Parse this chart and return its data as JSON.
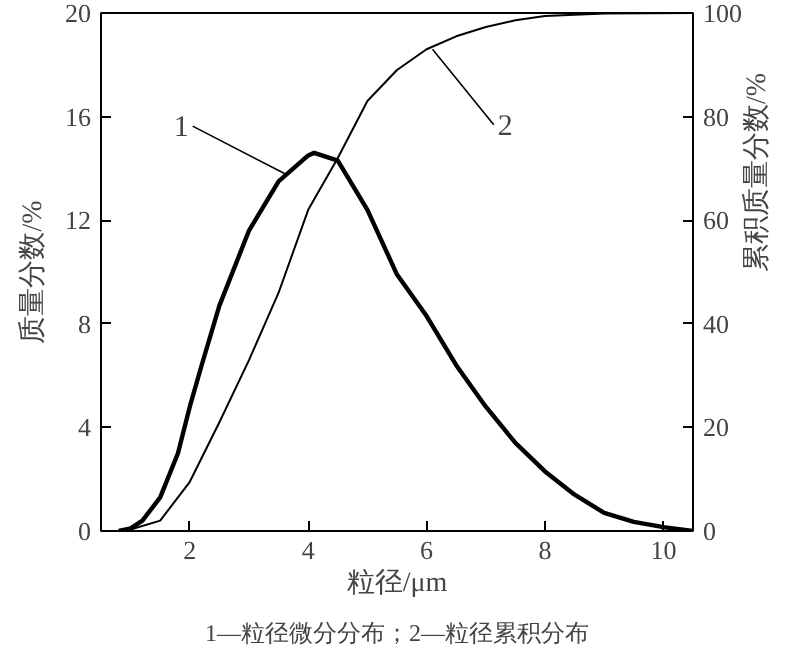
{
  "chart_data": {
    "type": "line",
    "xlabel": "粒径/μm",
    "ylabel": "质量分数/%",
    "y2label": "累积质量分数/%",
    "xlim": [
      0.5,
      10.5
    ],
    "xticks": [
      2,
      4,
      6,
      8,
      10
    ],
    "ylim": [
      0,
      20
    ],
    "yticks": [
      0,
      4,
      8,
      12,
      16,
      20
    ],
    "y2lim": [
      0,
      100
    ],
    "y2ticks": [
      0,
      20,
      40,
      60,
      80,
      100
    ],
    "series": [
      {
        "color": "#000000",
        "x": [
          0.8,
          1.0,
          1.2,
          1.5,
          1.8,
          2.0,
          2.2,
          2.5,
          3.0,
          3.5,
          4.0,
          4.1,
          4.5,
          5.0,
          5.5,
          6.0,
          6.5,
          7.0,
          7.5,
          8.0,
          8.5,
          9.0,
          9.5,
          10.0,
          10.5
        ],
        "values": [
          0,
          0.1,
          0.4,
          1.3,
          3.0,
          4.8,
          6.4,
          8.7,
          11.6,
          13.5,
          14.5,
          14.6,
          14.3,
          12.4,
          9.9,
          8.3,
          6.4,
          4.8,
          3.4,
          2.3,
          1.4,
          0.7,
          0.35,
          0.15,
          0
        ]
      },
      {
        "color": "#000000",
        "axis": "y2",
        "x": [
          0.8,
          1.0,
          1.5,
          2.0,
          2.5,
          3.0,
          3.5,
          4.0,
          4.5,
          5.0,
          5.5,
          6.0,
          6.5,
          7.0,
          7.5,
          8.0,
          9.0,
          10.5
        ],
        "values": [
          0,
          0.3,
          2,
          9.5,
          21,
          33,
          46,
          62,
          72,
          83,
          89,
          93,
          95.5,
          97.3,
          98.6,
          99.4,
          99.9,
          100
        ]
      }
    ],
    "annotations": [
      {
        "text": "1",
        "x": 3.6,
        "y": 13.8
      },
      {
        "text": "2",
        "x": 6.1,
        "y": 18.6
      },
      "1—粒径微分分布；2—粒径累积分布"
    ]
  }
}
